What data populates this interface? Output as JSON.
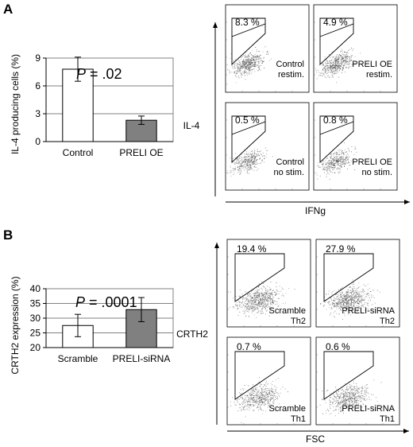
{
  "panels": [
    {
      "letter": "A",
      "flow_y_label": "IL-4",
      "flow_x_label": "IFNg",
      "flow_plots": [
        {
          "pct": "8.3 %",
          "label_line1": "Control",
          "label_line2": "restim."
        },
        {
          "pct": "4.9 %",
          "label_line1": "PRELI OE",
          "label_line2": "restim."
        },
        {
          "pct": "0.5 %",
          "label_line1": "Control",
          "label_line2": "no stim."
        },
        {
          "pct": "0.8 %",
          "label_line1": "PRELI OE",
          "label_line2": "no stim."
        }
      ]
    },
    {
      "letter": "B",
      "flow_y_label": "CRTH2",
      "flow_x_label": "FSC",
      "flow_plots": [
        {
          "pct": "19.4 %",
          "label_line1": "Scramble",
          "label_line2": "Th2"
        },
        {
          "pct": "27.9 %",
          "label_line1": "PRELI-siRNA",
          "label_line2": "Th2"
        },
        {
          "pct": "0.7 %",
          "label_line1": "Scramble",
          "label_line2": "Th1"
        },
        {
          "pct": "0.6 %",
          "label_line1": "PRELI-siRNA",
          "label_line2": "Th1"
        }
      ]
    }
  ],
  "chart_data": [
    {
      "type": "bar",
      "panel": "A",
      "categories": [
        "Control",
        "PRELI OE"
      ],
      "values": [
        7.8,
        2.3
      ],
      "errors": [
        1.3,
        0.45
      ],
      "bar_colors": [
        "#ffffff",
        "#808080"
      ],
      "ylabel": "IL-4 producing cells (%)",
      "yticks": [
        0,
        3,
        6,
        9
      ],
      "ylim": [
        0,
        9
      ],
      "annotation_prefix": "P",
      "annotation_value": " = .02",
      "grid": true
    },
    {
      "type": "bar",
      "panel": "B",
      "categories": [
        "Scramble",
        "PRELI-siRNA"
      ],
      "values": [
        27.5,
        32.9
      ],
      "errors": [
        3.8,
        4.1
      ],
      "bar_colors": [
        "#ffffff",
        "#808080"
      ],
      "ylabel": "CRTH2 expression (%)",
      "yticks": [
        20,
        25,
        30,
        35,
        40
      ],
      "ylim": [
        20,
        40
      ],
      "annotation_prefix": "P",
      "annotation_value": " = .0001",
      "grid": true
    }
  ]
}
